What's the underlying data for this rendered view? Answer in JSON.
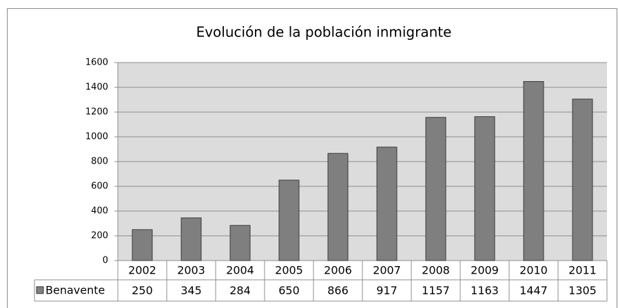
{
  "chart_data": {
    "type": "bar",
    "title": "Evolución de la población inmigrante",
    "categories": [
      "2002",
      "2003",
      "2004",
      "2005",
      "2006",
      "2007",
      "2008",
      "2009",
      "2010",
      "2011"
    ],
    "series": [
      {
        "name": "Benavente",
        "color": "#7f7f7f",
        "values": [
          250,
          345,
          284,
          650,
          866,
          917,
          1157,
          1163,
          1447,
          1305
        ]
      }
    ],
    "ylim": [
      0,
      1600
    ],
    "yticks": [
      0,
      200,
      400,
      600,
      800,
      1000,
      1200,
      1400,
      1600
    ],
    "grid": true
  }
}
